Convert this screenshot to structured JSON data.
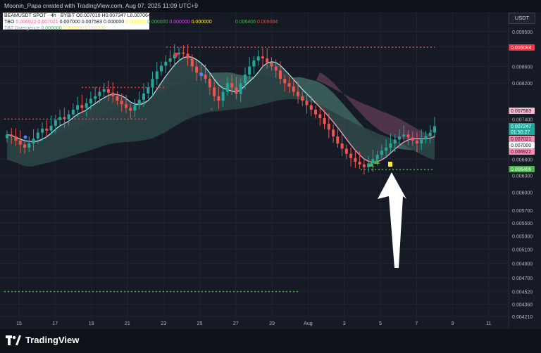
{
  "header": {
    "attribution": "Moonin_Papa created with TradingView.com, Aug 07, 2025 11:09 UTC+9"
  },
  "legend": {
    "symbol_line": "BEAMUSDT SPOT · 4h · BYBIT",
    "ohlc": "O0.007010 H0.007347 L0.007064 C0.007247 +0.000237 (+3.38%)",
    "tbo_label": "TBO",
    "tbo_values": [
      "0.006922",
      "0.007021",
      "0.007000",
      "0.007583",
      "0.000000",
      "0.000000",
      "0.000000",
      "0.000000",
      "0.000000",
      "0.000000",
      "0.006406",
      "0.009084"
    ],
    "tbo_colors": [
      "#f06292",
      "#f06292",
      "#ffffff",
      "#ffffff",
      "#ffffff",
      "#ffeb3b",
      "#4caf50",
      "#e040fb",
      "#ffeb3b",
      "#ffffff",
      "#4caf50",
      "#f44336"
    ],
    "divergence_label": "TBT Divergence",
    "divergence_values": [
      "0.000000",
      "0.000000",
      "0.000000"
    ]
  },
  "unit": "USDT",
  "footer": {
    "brand": "TradingView"
  },
  "price_labels": [
    {
      "value": "0.009084",
      "bg": "#f23645",
      "fg": "#ffffff"
    },
    {
      "value": "0.007583",
      "bg": "#f8bbd0",
      "fg": "#131722"
    },
    {
      "value": "0.007247",
      "bg": "#26a69a",
      "fg": "#ffffff"
    },
    {
      "value": "01:50:27",
      "bg": "#26a69a",
      "fg": "#ffffff"
    },
    {
      "value": "0.007021",
      "bg": "#f48fb1",
      "fg": "#131722"
    },
    {
      "value": "0.007000",
      "bg": "#ffffff",
      "fg": "#131722"
    },
    {
      "value": "0.006922",
      "bg": "#f48fb1",
      "fg": "#131722"
    },
    {
      "value": "0.006406",
      "bg": "#4caf50",
      "fg": "#ffffff"
    }
  ],
  "chart_data": {
    "type": "candlestick",
    "x_tick_labels": [
      "15",
      "17",
      "19",
      "21",
      "23",
      "25",
      "27",
      "29",
      "Aug",
      "3",
      "5",
      "7",
      "9",
      "11"
    ],
    "y_tick_labels": [
      "0.009500",
      "0.009100",
      "0.008600",
      "0.008200",
      "0.007400",
      "0.006600",
      "0.006300",
      "0.006000",
      "0.005700",
      "0.005500",
      "0.005300",
      "0.005100",
      "0.004900",
      "0.004700",
      "0.004520",
      "0.004360",
      "0.004210"
    ],
    "y_scale": "log",
    "candle_closes": [
      0.00708,
      0.00704,
      0.00696,
      0.00688,
      0.00682,
      0.0069,
      0.007,
      0.00712,
      0.0072,
      0.00716,
      0.00726,
      0.00738,
      0.00744,
      0.0074,
      0.0075,
      0.0076,
      0.0077,
      0.00764,
      0.00774,
      0.00784,
      0.0079,
      0.008,
      0.00806,
      0.00798,
      0.0079,
      0.0078,
      0.00772,
      0.00764,
      0.00758,
      0.0077,
      0.00782,
      0.00796,
      0.0081,
      0.0083,
      0.00848,
      0.00862,
      0.00872,
      0.0088,
      0.0089,
      0.00895,
      0.00892,
      0.0088,
      0.0086,
      0.00845,
      0.0084,
      0.0083,
      0.0081,
      0.0079,
      0.0078,
      0.008,
      0.0082,
      0.0081,
      0.00795,
      0.0082,
      0.0084,
      0.0086,
      0.00875,
      0.00885,
      0.0088,
      0.0087,
      0.0086,
      0.0085,
      0.0083,
      0.0082,
      0.00812,
      0.008,
      0.0079,
      0.0078,
      0.0077,
      0.0076,
      0.0075,
      0.00742,
      0.0073,
      0.00718,
      0.00704,
      0.0069,
      0.0068,
      0.0067,
      0.00662,
      0.00655,
      0.0065,
      0.00645,
      0.00652,
      0.0066,
      0.00668,
      0.00676,
      0.00682,
      0.0069,
      0.00698,
      0.00704,
      0.00708,
      0.00702,
      0.00696,
      0.0069,
      0.00698,
      0.00705,
      0.00712,
      0.00725
    ],
    "resistance_level": 0.009084,
    "support_levels": [
      0.006406,
      0.00452
    ],
    "shown_values": {
      "open": 0.00701,
      "high": 0.007347,
      "low": 0.007064,
      "close": 0.007247,
      "change": 0.000237,
      "change_pct": 3.38
    },
    "bullish_color": "#26a69a",
    "bearish_color": "#ef5350"
  }
}
